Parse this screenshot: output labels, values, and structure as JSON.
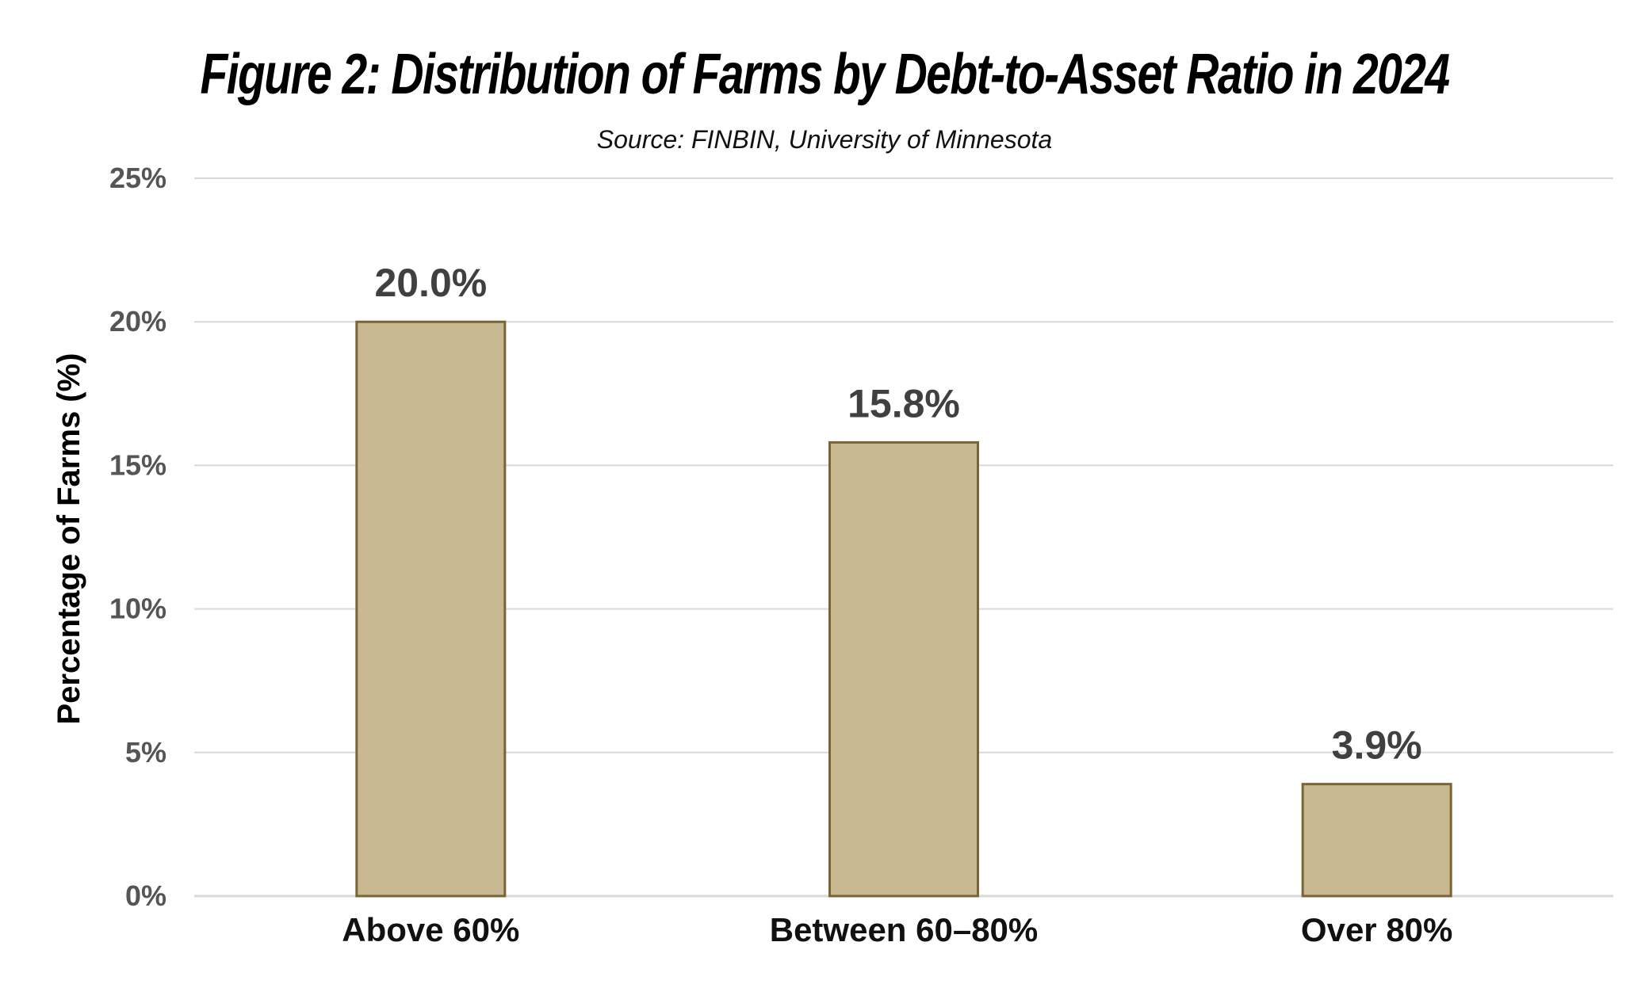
{
  "chart_data": {
    "type": "bar",
    "title": "Figure 2: Distribution of Farms by Debt-to-Asset Ratio in 2024",
    "subtitle": "Source: FINBIN, University of Minnesota",
    "xlabel": "",
    "ylabel": "Percentage of Farms (%)",
    "categories": [
      "Above 60%",
      "Between 60–80%",
      "Over 80%"
    ],
    "values": [
      20.0,
      15.8,
      3.9
    ],
    "data_labels": [
      "20.0%",
      "15.8%",
      "3.9%"
    ],
    "ylim": [
      0,
      25
    ],
    "yticks": [
      0,
      5,
      10,
      15,
      20,
      25
    ],
    "ytick_labels": [
      "0%",
      "5%",
      "10%",
      "15%",
      "20%",
      "25%"
    ],
    "grid": true,
    "legend": "none",
    "bar_color": "#c9b991",
    "bar_edge_color": "#7a6436"
  }
}
